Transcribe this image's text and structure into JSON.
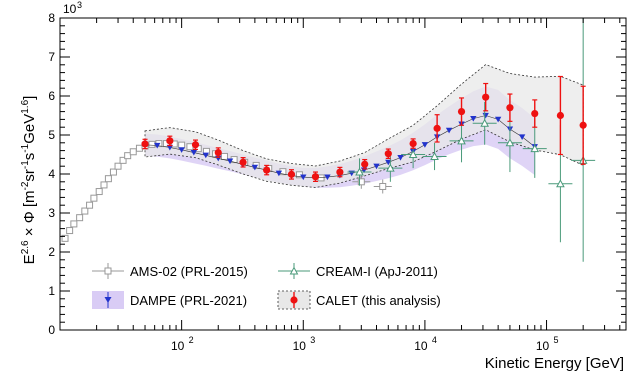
{
  "chart_data": {
    "type": "scatter",
    "xlabel": "Kinetic Energy [GeV]",
    "ylabel_main": "E",
    "ylabel_exp": "2.6",
    "ylabel_rest": " × Φ [m",
    "ylabel_units": [
      "-2",
      "sr",
      "-1",
      "s",
      "-1",
      "GeV",
      "1.6",
      "]"
    ],
    "yscale_label": "10",
    "yscale_exp": "3",
    "x_log": true,
    "xlim": [
      10,
      450000
    ],
    "ylim": [
      0,
      8
    ],
    "x_tick_labels": [
      {
        "value": 100,
        "base": "10",
        "exp": "2"
      },
      {
        "value": 1000,
        "base": "10",
        "exp": "3"
      },
      {
        "value": 10000,
        "base": "10",
        "exp": "4"
      },
      {
        "value": 100000,
        "base": "10",
        "exp": "5"
      }
    ],
    "y_tick_labels": [
      "0",
      "1",
      "2",
      "3",
      "4",
      "5",
      "6",
      "7",
      "8"
    ],
    "grid": false,
    "legend_placement": "bottom-left",
    "series": [
      {
        "name": "AMS-02 (PRL-2015)",
        "color": "#999999",
        "marker": "open-square",
        "points": [
          {
            "x": 11,
            "y": 2.35
          },
          {
            "x": 12,
            "y": 2.55
          },
          {
            "x": 13,
            "y": 2.72
          },
          {
            "x": 14.5,
            "y": 2.88
          },
          {
            "x": 16,
            "y": 3.05
          },
          {
            "x": 17.5,
            "y": 3.2
          },
          {
            "x": 19,
            "y": 3.38
          },
          {
            "x": 21,
            "y": 3.55
          },
          {
            "x": 23,
            "y": 3.72
          },
          {
            "x": 25,
            "y": 3.88
          },
          {
            "x": 27.5,
            "y": 4.05
          },
          {
            "x": 30,
            "y": 4.2
          },
          {
            "x": 33,
            "y": 4.35
          },
          {
            "x": 36,
            "y": 4.47
          },
          {
            "x": 40,
            "y": 4.57
          },
          {
            "x": 45,
            "y": 4.66
          },
          {
            "x": 50,
            "y": 4.72
          },
          {
            "x": 57,
            "y": 4.76
          },
          {
            "x": 65,
            "y": 4.78
          },
          {
            "x": 75,
            "y": 4.78
          },
          {
            "x": 87,
            "y": 4.77
          },
          {
            "x": 100,
            "y": 4.74
          },
          {
            "x": 117,
            "y": 4.7
          },
          {
            "x": 137,
            "y": 4.65
          },
          {
            "x": 160,
            "y": 4.58
          },
          {
            "x": 190,
            "y": 4.52
          },
          {
            "x": 225,
            "y": 4.45
          },
          {
            "x": 270,
            "y": 4.37
          },
          {
            "x": 330,
            "y": 4.3
          },
          {
            "x": 410,
            "y": 4.22
          },
          {
            "x": 520,
            "y": 4.14
          },
          {
            "x": 680,
            "y": 4.06
          },
          {
            "x": 930,
            "y": 3.98
          },
          {
            "x": 1400,
            "y": 3.9
          },
          {
            "x": 3000,
            "y": 3.8
          },
          {
            "x": 4500,
            "y": 3.68
          }
        ]
      },
      {
        "name": "CREAM-I (ApJ-2011)",
        "color": "#4a9a7a",
        "marker": "open-triangle-up",
        "points": [
          {
            "x": 2900,
            "y": 4.05
          },
          {
            "x": 5200,
            "y": 4.15
          },
          {
            "x": 8000,
            "y": 4.5
          },
          {
            "x": 12000,
            "y": 4.45
          },
          {
            "x": 20000,
            "y": 4.85
          },
          {
            "x": 31000,
            "y": 5.3
          },
          {
            "x": 50000,
            "y": 4.8
          },
          {
            "x": 80000,
            "y": 4.65
          },
          {
            "x": 130000,
            "y": 3.75
          },
          {
            "x": 200000,
            "y": 4.35
          }
        ]
      },
      {
        "name": "DAMPE (PRL-2021)",
        "color": "#2233cc",
        "band_color": "#d9ccf5",
        "marker": "filled-triangle-down",
        "points": [
          {
            "x": 50,
            "y": 4.75
          },
          {
            "x": 63,
            "y": 4.73
          },
          {
            "x": 80,
            "y": 4.68
          },
          {
            "x": 100,
            "y": 4.62
          },
          {
            "x": 126,
            "y": 4.55
          },
          {
            "x": 158,
            "y": 4.48
          },
          {
            "x": 200,
            "y": 4.4
          },
          {
            "x": 250,
            "y": 4.33
          },
          {
            "x": 316,
            "y": 4.25
          },
          {
            "x": 400,
            "y": 4.17
          },
          {
            "x": 500,
            "y": 4.1
          },
          {
            "x": 630,
            "y": 4.02
          },
          {
            "x": 800,
            "y": 3.96
          },
          {
            "x": 1000,
            "y": 3.92
          },
          {
            "x": 1260,
            "y": 3.9
          },
          {
            "x": 1580,
            "y": 3.92
          },
          {
            "x": 2000,
            "y": 3.96
          },
          {
            "x": 2500,
            "y": 4.02
          },
          {
            "x": 3160,
            "y": 4.1
          },
          {
            "x": 4000,
            "y": 4.2
          },
          {
            "x": 5000,
            "y": 4.3
          },
          {
            "x": 6300,
            "y": 4.42
          },
          {
            "x": 8000,
            "y": 4.58
          },
          {
            "x": 10000,
            "y": 4.75
          },
          {
            "x": 12600,
            "y": 4.95
          },
          {
            "x": 15800,
            "y": 5.12
          },
          {
            "x": 20000,
            "y": 5.28
          },
          {
            "x": 25000,
            "y": 5.42
          },
          {
            "x": 31600,
            "y": 5.5
          },
          {
            "x": 40000,
            "y": 5.4
          },
          {
            "x": 50000,
            "y": 5.15
          },
          {
            "x": 63000,
            "y": 4.95
          },
          {
            "x": 80000,
            "y": 4.7
          }
        ]
      },
      {
        "name": "CALET (this analysis)",
        "color": "#ee1111",
        "band_color": "#e8e8e8",
        "marker": "filled-circle",
        "points": [
          {
            "x": 50,
            "y": 4.77
          },
          {
            "x": 80,
            "y": 4.85
          },
          {
            "x": 130,
            "y": 4.75
          },
          {
            "x": 200,
            "y": 4.55
          },
          {
            "x": 320,
            "y": 4.3
          },
          {
            "x": 500,
            "y": 4.1
          },
          {
            "x": 800,
            "y": 3.99
          },
          {
            "x": 1260,
            "y": 3.93
          },
          {
            "x": 2000,
            "y": 4.05
          },
          {
            "x": 3200,
            "y": 4.25
          },
          {
            "x": 5000,
            "y": 4.52
          },
          {
            "x": 8000,
            "y": 4.78
          },
          {
            "x": 12600,
            "y": 5.17
          },
          {
            "x": 20000,
            "y": 5.6
          },
          {
            "x": 31600,
            "y": 5.97
          },
          {
            "x": 50000,
            "y": 5.7
          },
          {
            "x": 80000,
            "y": 5.55
          },
          {
            "x": 130000,
            "y": 5.5
          },
          {
            "x": 200000,
            "y": 5.25
          }
        ]
      }
    ]
  }
}
